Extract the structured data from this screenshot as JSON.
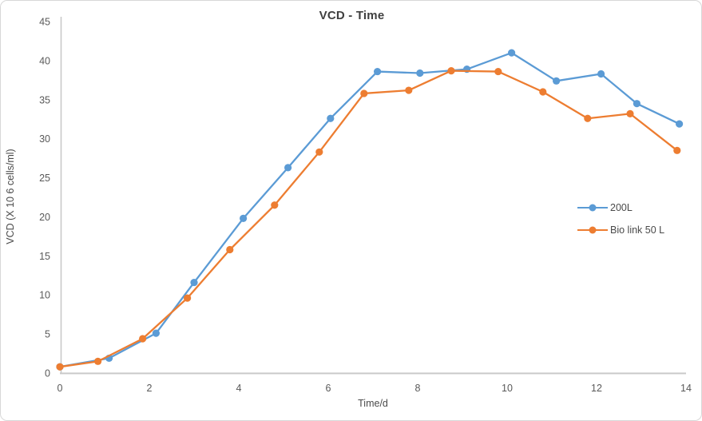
{
  "chart_data": {
    "type": "line",
    "title": "VCD - Time",
    "xlabel": "Time/d",
    "ylabel": "VCD (X 10 6 cells/ml)",
    "xlim": [
      0,
      14
    ],
    "ylim": [
      0,
      45
    ],
    "x_ticks": [
      0,
      2,
      4,
      6,
      8,
      10,
      12,
      14
    ],
    "y_ticks": [
      0,
      5,
      10,
      15,
      20,
      25,
      30,
      35,
      40,
      45
    ],
    "grid": false,
    "legend_position": "right",
    "marker": "circle",
    "series": [
      {
        "name": "200L",
        "color": "#5B9BD5",
        "x": [
          0,
          1.1,
          2.15,
          3.0,
          4.1,
          5.1,
          6.05,
          7.1,
          8.05,
          9.1,
          10.1,
          11.1,
          12.1,
          12.9,
          13.85
        ],
        "y": [
          0.8,
          1.9,
          5.1,
          11.6,
          19.8,
          26.3,
          32.6,
          38.6,
          38.4,
          38.9,
          41.0,
          37.4,
          38.3,
          34.5,
          31.9
        ]
      },
      {
        "name": "Bio link 50 L",
        "color": "#ED7D31",
        "x": [
          0,
          0.85,
          1.85,
          2.85,
          3.8,
          4.8,
          5.8,
          6.8,
          7.8,
          8.75,
          9.8,
          10.8,
          11.8,
          12.75,
          13.8
        ],
        "y": [
          0.8,
          1.5,
          4.4,
          9.6,
          15.8,
          21.5,
          28.3,
          35.8,
          36.2,
          38.7,
          38.6,
          36.0,
          32.6,
          33.2,
          28.5
        ]
      }
    ]
  },
  "colors": {
    "background": "#FFFFFF",
    "axis_line": "#C9C9C9",
    "tick_text": "#595959",
    "title_text": "#3F3F3F",
    "frame_border": "#D8D8D8"
  }
}
